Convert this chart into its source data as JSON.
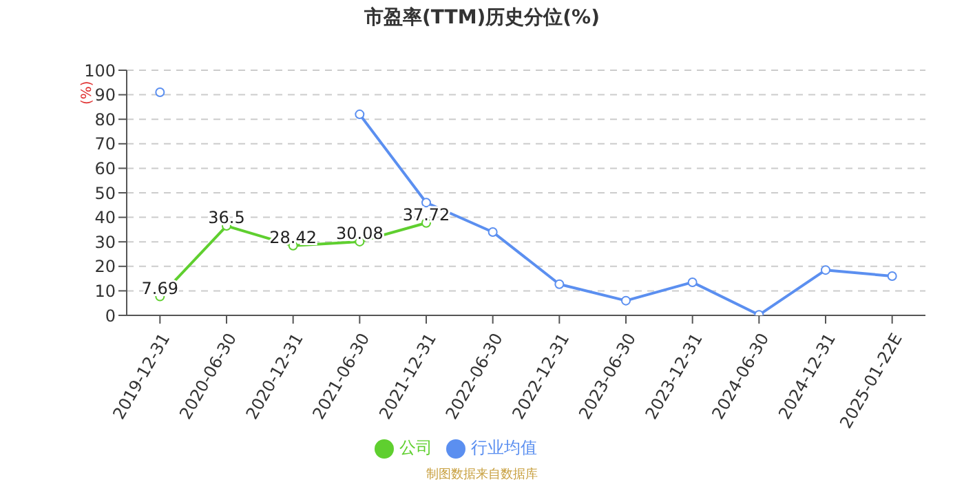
{
  "chart_data": {
    "type": "line",
    "title": "市盈率(TTM)历史分位(%)",
    "ylabel": "(%)",
    "categories": [
      "2019-12-31",
      "2020-06-30",
      "2020-12-31",
      "2021-06-30",
      "2021-12-31",
      "2022-06-30",
      "2022-12-31",
      "2023-06-30",
      "2023-12-31",
      "2024-06-30",
      "2024-12-31",
      "2025-01-22E"
    ],
    "series": [
      {
        "name": "公司",
        "color": "#5fcf2f",
        "values": [
          7.69,
          36.5,
          28.42,
          30.08,
          37.72,
          null,
          null,
          null,
          null,
          null,
          null,
          null
        ],
        "value_labels": [
          "7.69",
          "36.5",
          "28.42",
          "30.08",
          "37.72",
          null,
          null,
          null,
          null,
          null,
          null,
          null
        ]
      },
      {
        "name": "行业均值",
        "color": "#5b8ff0",
        "values": [
          91,
          null,
          null,
          82,
          46,
          34,
          12.7,
          6,
          13.5,
          0.2,
          18.5,
          16
        ]
      }
    ],
    "ylim": [
      0,
      100
    ],
    "yticks": [
      0,
      10,
      20,
      30,
      40,
      50,
      60,
      70,
      80,
      90,
      100
    ],
    "grid": "y",
    "legend": "bottom",
    "marker": "circle",
    "line_style": "solid",
    "annotations": [
      "制图数据来自数据库"
    ]
  }
}
